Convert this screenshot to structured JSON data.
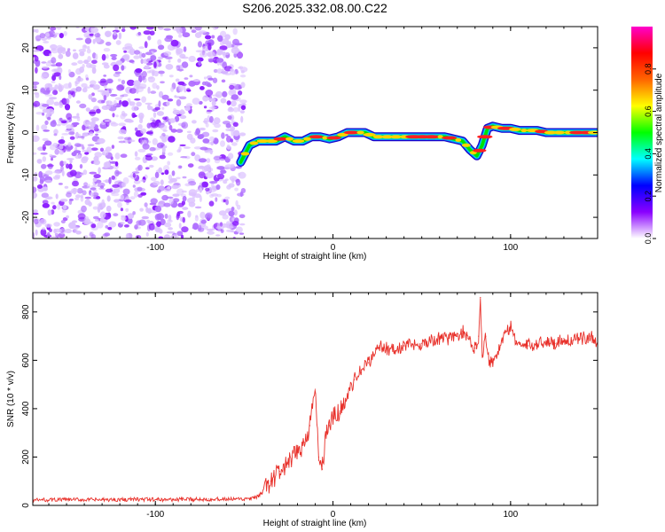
{
  "title": "S206.2025.332.08.00.C22",
  "chart_data": [
    {
      "type": "heatmap",
      "name": "spectrogram",
      "xlabel": "Height of straight line (km)",
      "ylabel": "Frequency (Hz)",
      "xlim": [
        -169,
        149
      ],
      "ylim": [
        -25,
        25
      ],
      "xticks": [
        -100,
        0,
        100
      ],
      "xtick_labels": [
        "-100",
        "0",
        "100"
      ],
      "yticks": [
        -20,
        -10,
        0,
        10,
        20
      ],
      "ytick_labels": [
        "-20",
        "-10",
        "0",
        "10",
        "20"
      ],
      "noise_region_x": [
        -169,
        -50
      ],
      "track": {
        "x": [
          -52,
          -47,
          -42,
          -37,
          -32,
          -27,
          -22,
          -17,
          -12,
          -7,
          -2,
          3,
          8,
          13,
          18,
          23,
          28,
          33,
          38,
          43,
          48,
          53,
          58,
          63,
          68,
          73,
          77,
          81,
          84,
          87,
          90,
          95,
          100,
          105,
          110,
          115,
          120,
          125,
          130,
          135,
          140,
          145,
          149
        ],
        "y": [
          -7,
          -3,
          -2,
          -2,
          -2,
          -1,
          -2,
          -2,
          -1,
          -1,
          -1.5,
          -1,
          0,
          0,
          0,
          -1,
          -1,
          -1,
          -1,
          -1,
          -1,
          -1,
          -1,
          -1,
          -1.5,
          -2,
          -4,
          -5.5,
          -3,
          1,
          1.5,
          1,
          1,
          0.5,
          0.5,
          0.5,
          0,
          0,
          0,
          0,
          0,
          0,
          0
        ]
      },
      "colorbar": {
        "label": "Normalized spectral amplitude",
        "ticks": [
          0.0,
          0.2,
          0.4,
          0.6,
          0.8
        ],
        "tick_labels": [
          "0.0",
          "0.2",
          "0.4",
          "0.6",
          "0.8"
        ],
        "colors": [
          "#ffffff",
          "#8a00ff",
          "#0000ff",
          "#00ffff",
          "#00ff00",
          "#ffff00",
          "#ff6600",
          "#ff0000",
          "#ff00cc"
        ]
      }
    },
    {
      "type": "line",
      "name": "snr",
      "xlabel": "Height of straight line (km)",
      "ylabel": "SNR (10 * v/v)",
      "xlim": [
        -169,
        149
      ],
      "ylim": [
        0,
        880
      ],
      "xticks": [
        -100,
        0,
        100
      ],
      "xtick_labels": [
        "-100",
        "0",
        "100"
      ],
      "yticks": [
        0,
        200,
        400,
        600,
        800
      ],
      "ytick_labels": [
        "0",
        "200",
        "400",
        "600",
        "800"
      ],
      "color": "#e8302a",
      "series": [
        {
          "name": "SNR",
          "x": [
            -169,
            -150,
            -130,
            -110,
            -90,
            -70,
            -50,
            -44,
            -40,
            -35,
            -30,
            -25,
            -20,
            -16,
            -13,
            -10,
            -8,
            -6,
            -4,
            -2,
            0,
            4,
            8,
            12,
            16,
            20,
            22,
            24,
            26,
            30,
            35,
            40,
            45,
            50,
            55,
            60,
            65,
            70,
            73,
            76,
            78,
            80,
            82,
            83,
            84,
            86,
            88,
            90,
            92,
            95,
            98,
            100,
            103,
            106,
            110,
            115,
            120,
            125,
            130,
            135,
            140,
            145,
            149
          ],
          "y": [
            22,
            24,
            23,
            25,
            24,
            26,
            25,
            30,
            50,
            100,
            140,
            170,
            220,
            260,
            330,
            480,
            200,
            150,
            300,
            330,
            360,
            390,
            450,
            520,
            560,
            590,
            610,
            650,
            660,
            650,
            640,
            660,
            665,
            670,
            680,
            690,
            690,
            700,
            720,
            690,
            660,
            650,
            700,
            860,
            620,
            700,
            600,
            590,
            620,
            680,
            720,
            740,
            680,
            660,
            660,
            670,
            680,
            670,
            690,
            680,
            690,
            700,
            670
          ]
        }
      ]
    }
  ]
}
